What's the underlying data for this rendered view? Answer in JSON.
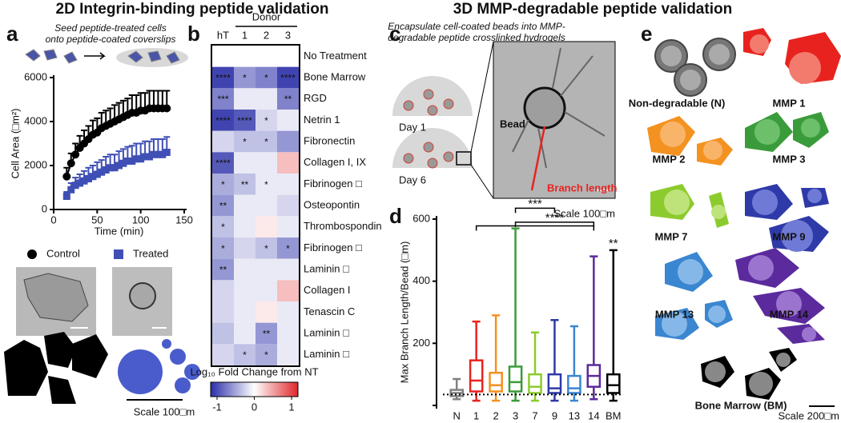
{
  "titles": {
    "left": "2D Integrin-binding peptide validation",
    "right": "3D MMP-degradable peptide validation"
  },
  "panel_letters": [
    "a",
    "b",
    "c",
    "d",
    "e"
  ],
  "panel_a": {
    "caption": [
      "Seed  peptide-treated cells",
      "onto peptide-coated coverslips"
    ],
    "scale": "Scale 100□m"
  },
  "panel_c": {
    "caption": [
      "Encapsulate cell-coated beads into MMP-",
      "degradable peptide crosslinked hydrogels"
    ],
    "day1": "Day 1",
    "day6": "Day 6",
    "bead": "Bead",
    "branch": "Branch length",
    "scale": "Scale 100□m"
  },
  "panel_e": {
    "labels": [
      "Non-degradable (N)",
      "MMP 1",
      "MMP 2",
      "MMP 3",
      "MMP 7",
      "MMP 9",
      "MMP 13",
      "MMP 14",
      "Bone Marrow (BM)"
    ],
    "scale": "Scale 200□m"
  },
  "chart_data": [
    {
      "type": "line",
      "xlabel": "Time (min)",
      "ylabel": "Cell Area (□m²)",
      "xlim": [
        0,
        150
      ],
      "xticks": [
        0,
        50,
        100,
        150
      ],
      "ylim": [
        0,
        6000
      ],
      "yticks": [
        0,
        2000,
        4000,
        6000
      ],
      "x": [
        15,
        20,
        25,
        30,
        35,
        40,
        45,
        50,
        55,
        60,
        65,
        70,
        75,
        80,
        85,
        90,
        95,
        100,
        105,
        110,
        115,
        120,
        125,
        130
      ],
      "series": [
        {
          "name": "Control",
          "color": "#000000",
          "marker": "circle",
          "values": [
            1500,
            2100,
            2500,
            2800,
            3000,
            3200,
            3400,
            3500,
            3700,
            3800,
            3900,
            4000,
            4100,
            4200,
            4300,
            4400,
            4400,
            4500,
            4500,
            4600,
            4600,
            4600,
            4600,
            4600
          ],
          "errors": [
            400,
            450,
            500,
            550,
            600,
            600,
            650,
            650,
            700,
            700,
            700,
            750,
            750,
            750,
            750,
            800,
            800,
            800,
            800,
            800,
            800,
            800,
            800,
            800
          ]
        },
        {
          "name": "Treated",
          "color": "#3f4fb5",
          "marker": "square",
          "values": [
            600,
            900,
            1100,
            1200,
            1300,
            1400,
            1500,
            1600,
            1700,
            1800,
            1900,
            1900,
            2000,
            2100,
            2200,
            2200,
            2300,
            2300,
            2400,
            2400,
            2500,
            2500,
            2500,
            2600
          ],
          "errors": [
            200,
            300,
            350,
            400,
            450,
            500,
            500,
            550,
            550,
            600,
            600,
            600,
            650,
            650,
            650,
            700,
            700,
            700,
            700,
            700,
            700,
            700,
            700,
            700
          ]
        }
      ]
    },
    {
      "type": "heatmap",
      "column_group": "Donor",
      "columns": [
        "hT",
        "1",
        "2",
        "3"
      ],
      "rows": [
        "No Treatment",
        "Bone Marrow",
        "RGD",
        "Netrin 1",
        "Fibronectin",
        "Collagen I, IX",
        "Fibrinogen □",
        "Osteopontin",
        "Thrombospondin",
        "Fibrinogen □",
        "Laminin □",
        "Collagen I",
        "Tenascin C",
        "Laminin □",
        "Laminin  □"
      ],
      "values": [
        [
          0,
          0,
          0,
          0
        ],
        [
          -0.9,
          -0.5,
          -0.6,
          -0.9
        ],
        [
          -0.6,
          -0.1,
          -0.1,
          -0.6
        ],
        [
          -0.9,
          -0.8,
          -0.2,
          -0.1
        ],
        [
          -0.2,
          -0.3,
          -0.3,
          -0.5
        ],
        [
          -0.8,
          -0.1,
          -0.1,
          0.3
        ],
        [
          -0.4,
          -0.3,
          -0.1,
          -0.1
        ],
        [
          -0.5,
          -0.1,
          -0.1,
          -0.2
        ],
        [
          -0.3,
          -0.1,
          0.1,
          -0.1
        ],
        [
          -0.4,
          -0.2,
          -0.3,
          -0.5
        ],
        [
          -0.5,
          -0.1,
          -0.1,
          -0.1
        ],
        [
          -0.2,
          -0.1,
          -0.1,
          0.3
        ],
        [
          -0.2,
          -0.1,
          0.1,
          -0.1
        ],
        [
          -0.3,
          -0.1,
          -0.5,
          -0.1
        ],
        [
          -0.2,
          -0.3,
          -0.4,
          -0.1
        ]
      ],
      "annotations": [
        [
          null,
          null,
          null,
          null
        ],
        [
          "****",
          "*",
          "*",
          "****"
        ],
        [
          "***",
          null,
          null,
          "**"
        ],
        [
          "****",
          "****",
          "*",
          null
        ],
        [
          null,
          "*",
          "*",
          null
        ],
        [
          "****",
          null,
          null,
          null
        ],
        [
          "*",
          "**",
          "*",
          null
        ],
        [
          "**",
          null,
          null,
          null
        ],
        [
          "*",
          null,
          null,
          null
        ],
        [
          "*",
          null,
          "*",
          "*"
        ],
        [
          "**",
          null,
          null,
          null
        ],
        [
          null,
          null,
          null,
          null
        ],
        [
          null,
          null,
          null,
          null
        ],
        [
          null,
          null,
          "**",
          null
        ],
        [
          null,
          "*",
          "*",
          null
        ]
      ],
      "vlim": [
        -1,
        1
      ],
      "colors": {
        "low": "#2b2fa8",
        "mid": "#ffffff",
        "high": "#e0262a"
      },
      "colorbar": {
        "label": "Log₁₀ Fold Change from NT",
        "ticks": [
          -1,
          0,
          1
        ]
      }
    },
    {
      "type": "box",
      "ylabel": "Max Branch Length/Bead (□m)",
      "categories": [
        "N",
        "1",
        "2",
        "3",
        "7",
        "9",
        "13",
        "14",
        "BM"
      ],
      "colors": [
        "#808080",
        "#e8231f",
        "#f39220",
        "#3a9b3a",
        "#8ccb2e",
        "#2e3aa8",
        "#3b86d0",
        "#5b2a9c",
        "#000000"
      ],
      "stats": [
        {
          "min": 20,
          "q1": 30,
          "median": 40,
          "q3": 50,
          "max": 85
        },
        {
          "min": 15,
          "q1": 45,
          "median": 80,
          "q3": 145,
          "max": 270
        },
        {
          "min": 15,
          "q1": 45,
          "median": 65,
          "q3": 105,
          "max": 290
        },
        {
          "min": 15,
          "q1": 45,
          "median": 75,
          "q3": 125,
          "max": 570
        },
        {
          "min": 15,
          "q1": 40,
          "median": 60,
          "q3": 100,
          "max": 235
        },
        {
          "min": 15,
          "q1": 40,
          "median": 55,
          "q3": 100,
          "max": 275
        },
        {
          "min": 15,
          "q1": 40,
          "median": 55,
          "q3": 95,
          "max": 255
        },
        {
          "min": 20,
          "q1": 60,
          "median": 95,
          "q3": 130,
          "max": 480
        },
        {
          "min": 15,
          "q1": 40,
          "median": 65,
          "q3": 100,
          "max": 500
        }
      ],
      "reference_line": 35,
      "ylim": [
        0,
        600
      ],
      "yticks": [
        0,
        200,
        400,
        600
      ],
      "brackets": [
        {
          "label": "***",
          "from": "3",
          "to": "9",
          "y": 635
        },
        {
          "label": "****",
          "from": "3",
          "to": "14",
          "y": 590
        },
        {
          "label": null,
          "from": "1",
          "to": "14",
          "y": 578
        }
      ],
      "point_labels": [
        {
          "category": "BM",
          "label": "**",
          "y": 520
        }
      ]
    }
  ]
}
